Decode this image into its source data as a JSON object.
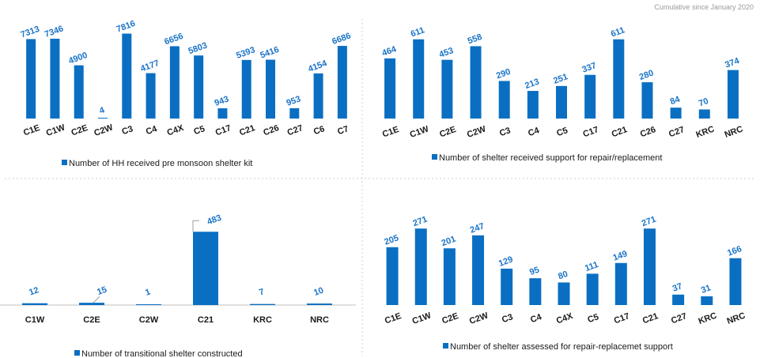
{
  "note": "Cumulative since January 2020",
  "chart_data": [
    {
      "type": "bar",
      "categories": [
        "C1E",
        "C1W",
        "C2E",
        "C2W",
        "C3",
        "C4",
        "C4X",
        "C5",
        "C17",
        "C21",
        "C26",
        "C27",
        "C6",
        "C7"
      ],
      "values": [
        7313,
        7346,
        4900,
        4,
        7816,
        4177,
        6656,
        5803,
        943,
        5393,
        5416,
        953,
        4154,
        6686
      ],
      "legend": "Number of HH received pre monsoon shelter kit",
      "color": "#0a6fc2",
      "ylim": [
        0,
        8000
      ]
    },
    {
      "type": "bar",
      "categories": [
        "C1E",
        "C1W",
        "C2E",
        "C2W",
        "C3",
        "C4",
        "C5",
        "C17",
        "C21",
        "C26",
        "C27",
        "KRC",
        "NRC"
      ],
      "values": [
        464,
        611,
        453,
        558,
        290,
        213,
        251,
        337,
        611,
        280,
        84,
        70,
        374
      ],
      "legend": "Number of shelter received support for repair/replacement",
      "color": "#0a6fc2",
      "ylim": [
        0,
        640
      ]
    },
    {
      "type": "bar",
      "categories": [
        "C1W",
        "C2E",
        "C2W",
        "C21",
        "KRC",
        "NRC"
      ],
      "values": [
        12,
        15,
        1,
        483,
        7,
        10
      ],
      "legend": "Number of transitional shelter constructed",
      "color": "#0a6fc2",
      "ylim": [
        0,
        500
      ]
    },
    {
      "type": "bar",
      "categories": [
        "C1E",
        "C1W",
        "C2E",
        "C2W",
        "C3",
        "C4",
        "C4X",
        "C5",
        "C17",
        "C21",
        "C27",
        "KRC",
        "NRC"
      ],
      "values": [
        205,
        271,
        201,
        247,
        129,
        95,
        80,
        111,
        149,
        271,
        37,
        31,
        166
      ],
      "legend": "Number of shelter assessed for repair-replacemet support",
      "color": "#0a6fc2",
      "ylim": [
        0,
        280
      ]
    }
  ]
}
